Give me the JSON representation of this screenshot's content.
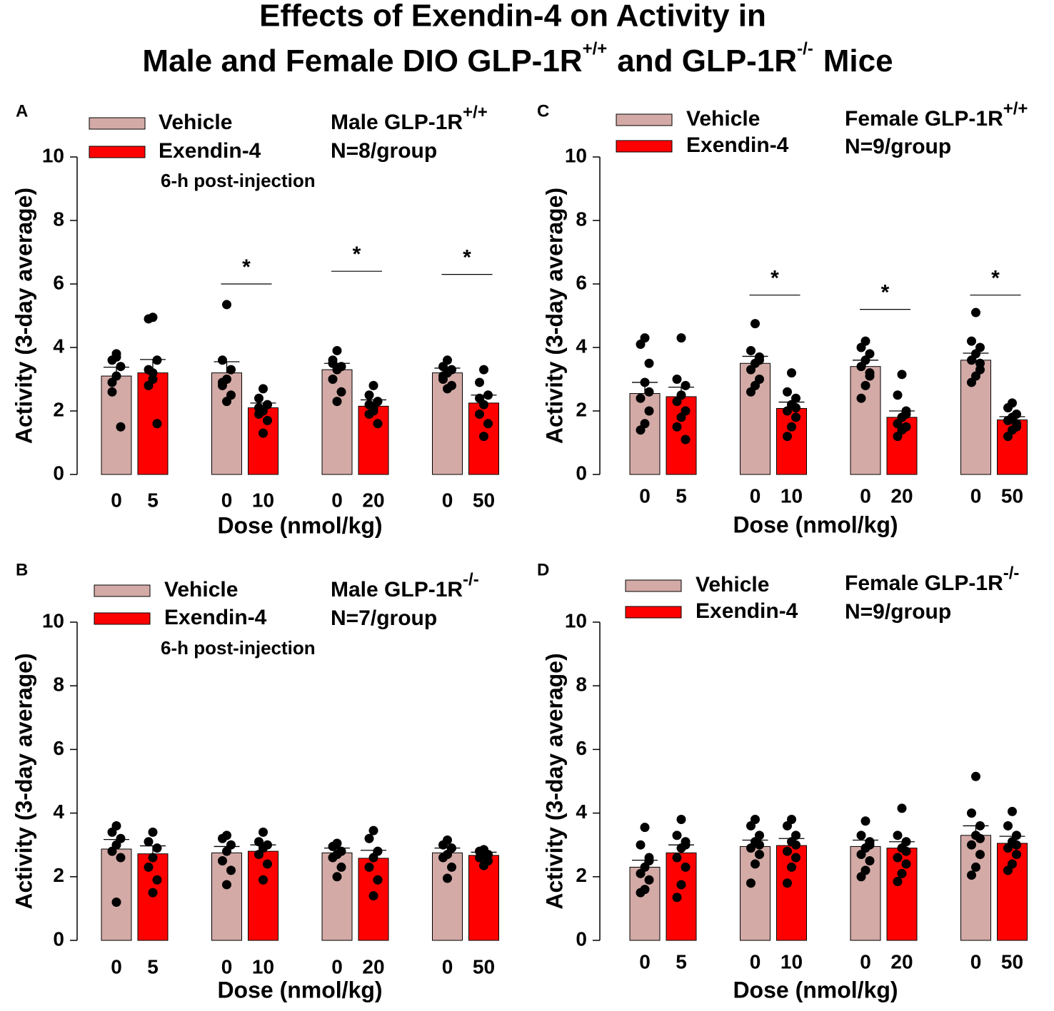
{
  "title": {
    "line1": "Effects of Exendin-4 on Activity in",
    "line2": [
      "Male and Female DIO GLP-1R",
      "+/+",
      "and GLP-1R",
      "-/-",
      "Mice"
    ]
  },
  "chart_data": [
    {
      "type": "bar",
      "panel": "A",
      "ylabel": "Activity (3-day average)",
      "xlabel": "Dose (nmol/kg)",
      "genotype": "Male GLP-1R",
      "genotype_sup": "+/+",
      "n": "N=8/group",
      "note": "6-h post-injection",
      "categories": [
        [
          "0",
          "5"
        ],
        [
          "0",
          "10"
        ],
        [
          "0",
          "20"
        ],
        [
          "0",
          "50"
        ]
      ],
      "ylim": [
        0,
        10
      ],
      "yticks": [
        0,
        2,
        4,
        6,
        8,
        10
      ],
      "series": [
        {
          "name": "Vehicle",
          "color": "#d3aaa6",
          "values": [
            3.1,
            3.2,
            3.3,
            3.2
          ],
          "errors": [
            0.28,
            0.35,
            0.2,
            0.15
          ],
          "points": [
            [
              3.8,
              3.6,
              3.4,
              3.1,
              2.6,
              1.5,
              3.7,
              2.9
            ],
            [
              5.35,
              3.6,
              3.3,
              3.0,
              2.8,
              2.5,
              2.3,
              2.9
            ],
            [
              3.9,
              3.6,
              3.4,
              3.3,
              3.0,
              2.6,
              2.3,
              3.5
            ],
            [
              3.6,
              3.4,
              3.3,
              3.2,
              3.0,
              2.8,
              2.7,
              3.1
            ]
          ]
        },
        {
          "name": "Exendin-4",
          "color": "#ff0000",
          "values": [
            3.2,
            2.1,
            2.15,
            2.25
          ],
          "errors": [
            0.42,
            0.15,
            0.2,
            0.25
          ],
          "points": [
            [
              4.95,
              4.9,
              3.6,
              3.2,
              2.8,
              1.6,
              3.0,
              3.3
            ],
            [
              2.7,
              2.4,
              2.2,
              2.0,
              1.9,
              1.7,
              1.3,
              2.1
            ],
            [
              2.8,
              2.5,
              2.3,
              2.1,
              1.9,
              1.6,
              2.0,
              2.2
            ],
            [
              3.3,
              2.9,
              2.5,
              2.2,
              1.9,
              1.6,
              1.2,
              2.4
            ]
          ]
        }
      ],
      "significance": [
        {
          "group": 1,
          "y": 6.0,
          "label": "*"
        },
        {
          "group": 2,
          "y": 6.4,
          "label": "*"
        },
        {
          "group": 3,
          "y": 6.3,
          "label": "*"
        }
      ]
    },
    {
      "type": "bar",
      "panel": "B",
      "ylabel": "Activity (3-day average)",
      "xlabel": "Dose (nmol/kg)",
      "genotype": "Male GLP-1R",
      "genotype_sup": "-/-",
      "n": "N=7/group",
      "note": "6-h post-injection",
      "categories": [
        [
          "0",
          "5"
        ],
        [
          "0",
          "10"
        ],
        [
          "0",
          "20"
        ],
        [
          "0",
          "50"
        ]
      ],
      "ylim": [
        0,
        10
      ],
      "yticks": [
        0,
        2,
        4,
        6,
        8,
        10
      ],
      "series": [
        {
          "name": "Vehicle",
          "color": "#d3aaa6",
          "values": [
            2.87,
            2.75,
            2.75,
            2.75
          ],
          "errors": [
            0.3,
            0.2,
            0.15,
            0.15
          ],
          "points": [
            [
              3.6,
              3.4,
              3.2,
              3.0,
              2.8,
              2.6,
              1.2
            ],
            [
              3.3,
              3.2,
              3.0,
              2.8,
              2.5,
              2.2,
              1.75
            ],
            [
              3.05,
              2.95,
              2.8,
              2.7,
              2.6,
              2.3,
              2.0
            ],
            [
              3.15,
              3.0,
              2.9,
              2.7,
              2.6,
              2.3,
              1.95
            ]
          ]
        },
        {
          "name": "Exendin-4",
          "color": "#ff0000",
          "values": [
            2.72,
            2.8,
            2.58,
            2.67
          ],
          "errors": [
            0.25,
            0.2,
            0.25,
            0.1
          ],
          "points": [
            [
              3.4,
              3.1,
              2.9,
              2.6,
              2.3,
              1.9,
              1.5
            ],
            [
              3.4,
              3.1,
              3.0,
              2.9,
              2.7,
              2.4,
              1.9
            ],
            [
              3.45,
              3.2,
              2.8,
              2.6,
              2.3,
              1.9,
              1.4
            ],
            [
              2.85,
              2.8,
              2.7,
              2.65,
              2.6,
              2.5,
              2.35
            ]
          ]
        }
      ],
      "significance": []
    },
    {
      "type": "bar",
      "panel": "C",
      "ylabel": "Activity (3-day average)",
      "xlabel": "Dose (nmol/kg)",
      "genotype": "Female GLP-1R",
      "genotype_sup": "+/+",
      "n": "N=9/group",
      "categories": [
        [
          "0",
          "5"
        ],
        [
          "0",
          "10"
        ],
        [
          "0",
          "20"
        ],
        [
          "0",
          "50"
        ]
      ],
      "ylim": [
        0,
        10
      ],
      "yticks": [
        0,
        2,
        4,
        6,
        8,
        10
      ],
      "series": [
        {
          "name": "Vehicle",
          "color": "#d3aaa6",
          "values": [
            2.55,
            3.5,
            3.4,
            3.6
          ],
          "errors": [
            0.35,
            0.22,
            0.2,
            0.22
          ],
          "points": [
            [
              4.3,
              4.1,
              3.5,
              2.9,
              2.4,
              2.0,
              1.6,
              1.4,
              2.6
            ],
            [
              4.75,
              3.9,
              3.7,
              3.5,
              3.3,
              3.0,
              2.8,
              2.6,
              3.6
            ],
            [
              4.2,
              4.0,
              3.8,
              3.6,
              3.4,
              3.1,
              2.8,
              2.4,
              3.2
            ],
            [
              5.1,
              4.2,
              4.0,
              3.8,
              3.6,
              3.3,
              3.1,
              2.9,
              3.5
            ]
          ]
        },
        {
          "name": "Exendin-4",
          "color": "#ff0000",
          "values": [
            2.45,
            2.08,
            1.8,
            1.72
          ],
          "errors": [
            0.3,
            0.2,
            0.2,
            0.1
          ],
          "points": [
            [
              4.3,
              3.0,
              2.8,
              2.5,
              2.3,
              2.0,
              1.8,
              1.5,
              1.1
            ],
            [
              3.2,
              2.6,
              2.4,
              2.2,
              2.0,
              1.8,
              1.5,
              1.2,
              2.1
            ],
            [
              3.15,
              2.5,
              2.0,
              1.8,
              1.6,
              1.5,
              1.4,
              1.2,
              1.9
            ],
            [
              2.25,
              2.1,
              1.9,
              1.8,
              1.7,
              1.5,
              1.4,
              1.2,
              1.6
            ]
          ]
        }
      ],
      "significance": [
        {
          "group": 1,
          "y": 5.65,
          "label": "*"
        },
        {
          "group": 2,
          "y": 5.2,
          "label": "*"
        },
        {
          "group": 3,
          "y": 5.65,
          "label": "*"
        }
      ]
    },
    {
      "type": "bar",
      "panel": "D",
      "ylabel": "Activity (3-day average)",
      "xlabel": "Dose (nmol/kg)",
      "genotype": "Female GLP-1R",
      "genotype_sup": "-/-",
      "n": "N=9/group",
      "categories": [
        [
          "0",
          "5"
        ],
        [
          "0",
          "10"
        ],
        [
          "0",
          "20"
        ],
        [
          "0",
          "50"
        ]
      ],
      "ylim": [
        0,
        10
      ],
      "yticks": [
        0,
        2,
        4,
        6,
        8,
        10
      ],
      "series": [
        {
          "name": "Vehicle",
          "color": "#d3aaa6",
          "values": [
            2.3,
            2.95,
            2.95,
            3.3
          ],
          "errors": [
            0.22,
            0.2,
            0.2,
            0.3
          ],
          "points": [
            [
              3.55,
              3.0,
              2.6,
              2.3,
              2.1,
              1.9,
              1.6,
              1.5,
              2.5
            ],
            [
              3.8,
              3.6,
              3.3,
              3.1,
              2.9,
              2.7,
              2.4,
              1.8,
              3.0
            ],
            [
              3.75,
              3.3,
              3.1,
              2.9,
              2.7,
              2.5,
              2.2,
              2.0,
              3.0
            ],
            [
              5.15,
              4.0,
              3.6,
              3.3,
              3.0,
              2.7,
              2.3,
              2.05,
              3.2
            ]
          ]
        },
        {
          "name": "Exendin-4",
          "color": "#ff0000",
          "values": [
            2.75,
            2.98,
            2.9,
            3.05
          ],
          "errors": [
            0.25,
            0.22,
            0.2,
            0.22
          ],
          "points": [
            [
              3.8,
              3.3,
              3.1,
              2.9,
              2.6,
              2.3,
              1.75,
              1.35,
              3.0
            ],
            [
              3.8,
              3.6,
              3.3,
              3.1,
              2.8,
              2.6,
              2.3,
              1.8,
              3.0
            ],
            [
              4.15,
              3.3,
              3.1,
              2.9,
              2.6,
              2.4,
              2.1,
              1.85,
              2.8
            ],
            [
              4.05,
              3.6,
              3.3,
              3.1,
              2.9,
              2.7,
              2.4,
              2.2,
              3.0
            ]
          ]
        }
      ],
      "significance": []
    }
  ]
}
